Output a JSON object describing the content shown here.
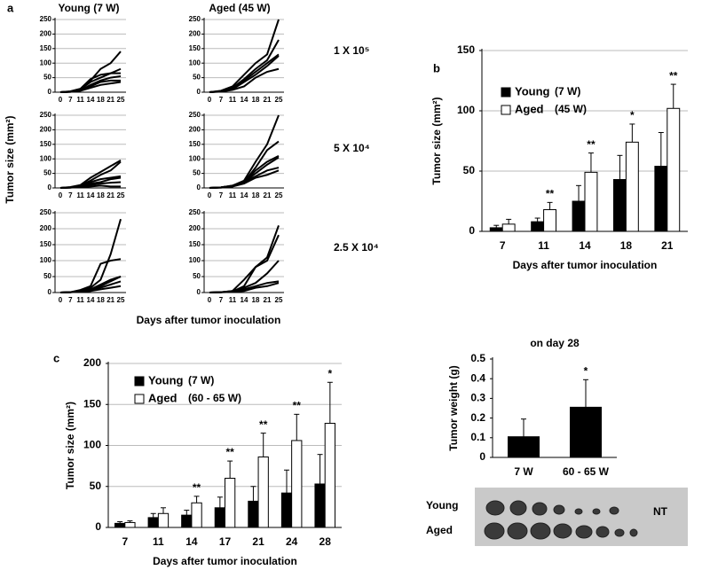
{
  "panel_labels": [
    "a",
    "b",
    "c"
  ],
  "panel_a": {
    "columns": [
      "Young (7 W)",
      "Aged (45 W)"
    ],
    "rows": [
      "1 X 10⁵",
      "5 X 10⁴",
      "2.5 X 10⁴"
    ],
    "ylabel": "Tumor size (mm²)",
    "xlabel": "Days after tumor inoculation"
  },
  "photo": {
    "rows": [
      "Young",
      "Aged"
    ],
    "note": "NT"
  },
  "chart_data": [
    {
      "type": "line",
      "categories": [
        "0",
        "7",
        "11",
        "14",
        "18",
        "21",
        "25"
      ],
      "ylim": [
        0,
        250
      ],
      "yticks": [
        0,
        50,
        100,
        150,
        200,
        250
      ],
      "grid": true,
      "series": [
        {
          "color": "#000",
          "values": [
            0,
            2,
            8,
            40,
            80,
            100,
            140
          ]
        },
        {
          "color": "#000",
          "values": [
            0,
            2,
            10,
            35,
            50,
            65,
            80
          ]
        },
        {
          "color": "#000",
          "values": [
            0,
            3,
            12,
            45,
            60,
            65,
            65
          ]
        },
        {
          "color": "#000",
          "values": [
            0,
            1,
            6,
            25,
            40,
            50,
            55
          ]
        },
        {
          "color": "#000",
          "values": [
            0,
            2,
            8,
            20,
            35,
            40,
            40
          ]
        },
        {
          "color": "#000",
          "values": [
            0,
            1,
            5,
            15,
            25,
            30,
            35
          ]
        }
      ]
    },
    {
      "type": "line",
      "categories": [
        "0",
        "7",
        "11",
        "14",
        "18",
        "21",
        "25"
      ],
      "ylim": [
        0,
        250
      ],
      "yticks": [
        0,
        50,
        100,
        150,
        200,
        250
      ],
      "grid": true,
      "series": [
        {
          "color": "#000",
          "values": [
            0,
            5,
            20,
            60,
            100,
            130,
            250
          ]
        },
        {
          "color": "#000",
          "values": [
            0,
            4,
            15,
            45,
            80,
            110,
            180
          ]
        },
        {
          "color": "#000",
          "values": [
            0,
            3,
            12,
            40,
            70,
            100,
            130
          ]
        },
        {
          "color": "#000",
          "values": [
            0,
            3,
            10,
            35,
            60,
            90,
            125
          ]
        },
        {
          "color": "#000",
          "values": [
            0,
            2,
            8,
            20,
            50,
            70,
            80
          ]
        }
      ]
    },
    {
      "type": "line",
      "categories": [
        "0",
        "7",
        "11",
        "14",
        "18",
        "21",
        "25"
      ],
      "ylim": [
        0,
        250
      ],
      "yticks": [
        0,
        50,
        100,
        150,
        200,
        250
      ],
      "grid": true,
      "series": [
        {
          "color": "#000",
          "values": [
            0,
            3,
            10,
            35,
            55,
            75,
            95
          ]
        },
        {
          "color": "#000",
          "values": [
            0,
            2,
            8,
            25,
            45,
            60,
            90
          ]
        },
        {
          "color": "#000",
          "values": [
            0,
            2,
            6,
            20,
            30,
            35,
            40
          ]
        },
        {
          "color": "#000",
          "values": [
            0,
            1,
            5,
            15,
            20,
            30,
            35
          ]
        },
        {
          "color": "#000",
          "values": [
            0,
            1,
            4,
            10,
            15,
            18,
            20
          ]
        },
        {
          "color": "#000",
          "values": [
            0,
            1,
            3,
            5,
            8,
            5,
            5
          ]
        }
      ]
    },
    {
      "type": "line",
      "categories": [
        "0",
        "7",
        "11",
        "14",
        "18",
        "21",
        "25"
      ],
      "ylim": [
        0,
        250
      ],
      "yticks": [
        0,
        50,
        100,
        150,
        200,
        250
      ],
      "grid": true,
      "series": [
        {
          "color": "#000",
          "values": [
            0,
            2,
            8,
            25,
            90,
            150,
            250
          ]
        },
        {
          "color": "#000",
          "values": [
            0,
            2,
            8,
            20,
            70,
            130,
            160
          ]
        },
        {
          "color": "#000",
          "values": [
            0,
            2,
            6,
            20,
            60,
            90,
            110
          ]
        },
        {
          "color": "#000",
          "values": [
            0,
            2,
            6,
            20,
            50,
            80,
            105
          ]
        },
        {
          "color": "#000",
          "values": [
            0,
            1,
            5,
            20,
            40,
            60,
            70
          ]
        },
        {
          "color": "#000",
          "values": [
            0,
            1,
            5,
            15,
            35,
            45,
            60
          ]
        }
      ]
    },
    {
      "type": "line",
      "categories": [
        "0",
        "7",
        "11",
        "14",
        "18",
        "21",
        "25"
      ],
      "ylim": [
        0,
        250
      ],
      "yticks": [
        0,
        50,
        100,
        150,
        200,
        250
      ],
      "grid": true,
      "series": [
        {
          "color": "#000",
          "values": [
            0,
            1,
            5,
            15,
            40,
            120,
            230
          ]
        },
        {
          "color": "#000",
          "values": [
            0,
            1,
            8,
            20,
            90,
            100,
            105
          ]
        },
        {
          "color": "#000",
          "values": [
            0,
            1,
            5,
            10,
            25,
            40,
            50
          ]
        },
        {
          "color": "#000",
          "values": [
            0,
            1,
            3,
            8,
            20,
            35,
            50
          ]
        },
        {
          "color": "#000",
          "values": [
            0,
            1,
            3,
            5,
            15,
            25,
            35
          ]
        },
        {
          "color": "#000",
          "values": [
            0,
            1,
            2,
            5,
            10,
            15,
            20
          ]
        }
      ]
    },
    {
      "type": "line",
      "categories": [
        "0",
        "7",
        "11",
        "14",
        "18",
        "21",
        "25"
      ],
      "ylim": [
        0,
        250
      ],
      "yticks": [
        0,
        50,
        100,
        150,
        200,
        250
      ],
      "grid": true,
      "series": [
        {
          "color": "#000",
          "values": [
            0,
            1,
            3,
            20,
            80,
            110,
            210
          ]
        },
        {
          "color": "#000",
          "values": [
            0,
            1,
            5,
            40,
            80,
            100,
            180
          ]
        },
        {
          "color": "#000",
          "values": [
            0,
            1,
            5,
            15,
            30,
            60,
            100
          ]
        },
        {
          "color": "#000",
          "values": [
            0,
            1,
            2,
            10,
            20,
            30,
            35
          ]
        },
        {
          "color": "#000",
          "values": [
            0,
            1,
            2,
            5,
            15,
            20,
            30
          ]
        }
      ]
    },
    {
      "type": "bar",
      "ylabel": "Tumor size (mm²)",
      "xlabel": "Days after tumor inoculation",
      "categories": [
        "7",
        "11",
        "14",
        "18",
        "21"
      ],
      "ylim": [
        0,
        150
      ],
      "yticks": [
        0,
        50,
        100,
        150
      ],
      "grid": true,
      "series": [
        {
          "name": "Young",
          "group": "(7 W)",
          "color": "#000",
          "values": [
            3,
            8,
            25,
            43,
            54
          ],
          "errors": [
            2,
            3,
            13,
            20,
            28
          ]
        },
        {
          "name": "Aged",
          "group": "(45 W)",
          "color": "#fff",
          "values": [
            6,
            18,
            49,
            74,
            102
          ],
          "errors": [
            4,
            6,
            16,
            15,
            20
          ]
        }
      ],
      "significance": [
        null,
        "**",
        "**",
        "*",
        "**"
      ]
    },
    {
      "type": "bar",
      "ylabel": "Tumor size (mm²)",
      "xlabel": "Days after tumor inoculation",
      "categories": [
        "7",
        "11",
        "14",
        "17",
        "21",
        "24",
        "28"
      ],
      "ylim": [
        0,
        200
      ],
      "yticks": [
        0,
        50,
        100,
        150,
        200
      ],
      "grid": true,
      "series": [
        {
          "name": "Young",
          "group": "(7 W)",
          "color": "#000",
          "values": [
            5,
            12,
            15,
            24,
            32,
            42,
            53
          ],
          "errors": [
            2,
            5,
            6,
            13,
            18,
            28,
            36
          ]
        },
        {
          "name": "Aged",
          "group": "(60 - 65 W)",
          "color": "#fff",
          "values": [
            6,
            17,
            30,
            60,
            86,
            106,
            127
          ],
          "errors": [
            2,
            7,
            8,
            21,
            29,
            32,
            50
          ]
        }
      ],
      "significance": [
        null,
        null,
        "**",
        "**",
        "**",
        "**",
        "*"
      ]
    },
    {
      "type": "bar",
      "title": "on day 28",
      "ylabel": "Tumor weight (g)",
      "categories": [
        "7 W",
        "60 - 65 W"
      ],
      "ylim": [
        0,
        0.5
      ],
      "yticks": [
        0,
        0.1,
        0.2,
        0.3,
        0.4,
        0.5
      ],
      "grid": false,
      "color": "#000",
      "values": [
        0.105,
        0.255
      ],
      "errors": [
        0.09,
        0.14
      ],
      "significance": [
        null,
        "*"
      ]
    }
  ]
}
